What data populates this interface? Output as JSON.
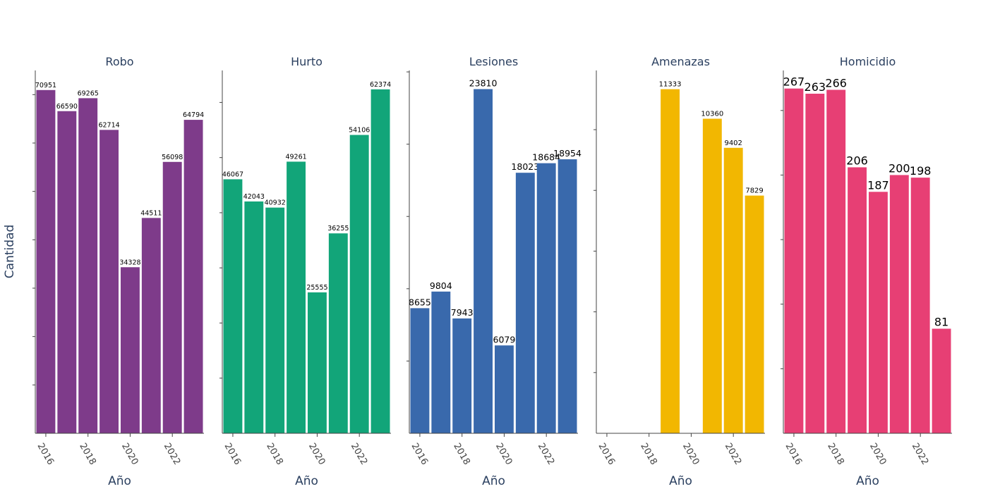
{
  "chart_data": {
    "type": "bar",
    "layout": "facets",
    "y_axis_title": "Cantidad",
    "x_axis_title": "Año",
    "x_tick_labels": [
      "2016",
      "2018",
      "2020",
      "2022"
    ],
    "x_range": [
      2015.5,
      2023.5
    ],
    "facets": [
      {
        "title": "Robo",
        "color": "#7e3b8a",
        "ylim": [
          0,
          75000
        ],
        "y_tick_values": [
          10000,
          20000,
          30000,
          40000,
          50000,
          60000,
          70000
        ],
        "x": [
          2016,
          2017,
          2018,
          2019,
          2020,
          2021,
          2022,
          2023
        ],
        "values": [
          70951,
          66590,
          69265,
          62714,
          34328,
          44511,
          56098,
          64794
        ],
        "labels": [
          "70951",
          "66590",
          "69265",
          "62714",
          "34328",
          "44511",
          "56098",
          "64794"
        ]
      },
      {
        "title": "Hurto",
        "color": "#12a579",
        "ylim": [
          0,
          65800
        ],
        "y_tick_values": [
          10000,
          20000,
          30000,
          40000,
          50000,
          60000
        ],
        "x": [
          2016,
          2017,
          2018,
          2019,
          2020,
          2021,
          2022,
          2023
        ],
        "values": [
          46067,
          42043,
          40932,
          49261,
          25555,
          36255,
          54106,
          62374
        ],
        "labels": [
          "46067",
          "42043",
          "40932",
          "49261",
          "25555",
          "36255",
          "54106",
          "62374"
        ]
      },
      {
        "title": "Lesiones",
        "color": "#3969ac",
        "ylim": [
          0,
          25100
        ],
        "y_tick_values": [
          5000,
          10000,
          15000,
          20000,
          25000
        ],
        "x": [
          2016,
          2017,
          2018,
          2019,
          2020,
          2021,
          2022,
          2023
        ],
        "values": [
          8655,
          9804,
          7943,
          23810,
          6079,
          18023,
          18684,
          18954
        ],
        "labels": [
          "8655",
          "9804",
          "7943",
          "23810",
          "6079",
          "18023",
          "18684",
          "18954"
        ]
      },
      {
        "title": "Amenazas",
        "color": "#f2b701",
        "ylim": [
          0,
          11950
        ],
        "y_tick_values": [
          2000,
          4000,
          6000,
          8000,
          10000,
          12000
        ],
        "x": [
          2019,
          2021,
          2022,
          2023
        ],
        "values": [
          11333,
          10360,
          9402,
          7829
        ],
        "labels": [
          "11333",
          "10360",
          "9402",
          "7829"
        ]
      },
      {
        "title": "Homicidio",
        "color": "#e73f74",
        "ylim": [
          0,
          281
        ],
        "y_tick_values": [
          50,
          100,
          150,
          200,
          250
        ],
        "x": [
          2016,
          2017,
          2018,
          2019,
          2020,
          2021,
          2022,
          2023
        ],
        "values": [
          267,
          263,
          266,
          206,
          187,
          200,
          198,
          81
        ],
        "labels": [
          "267",
          "263",
          "266",
          "206",
          "187",
          "200",
          "198",
          "81"
        ]
      }
    ]
  }
}
